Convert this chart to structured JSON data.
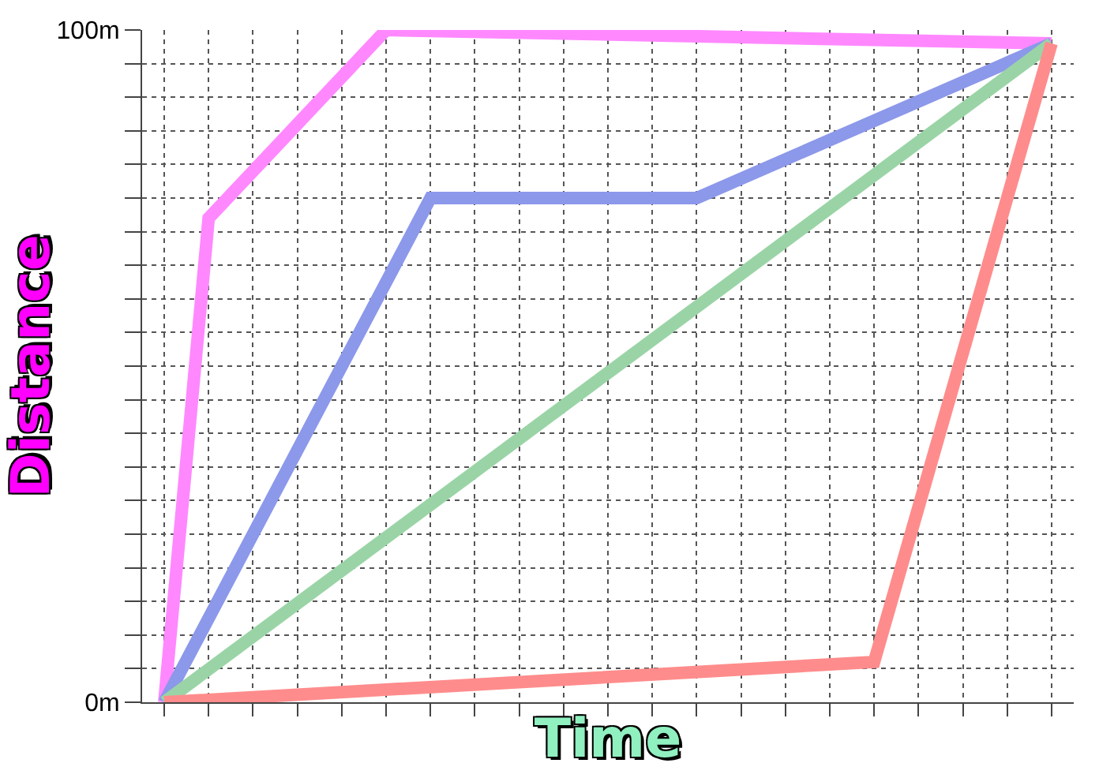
{
  "chart_data": {
    "type": "line",
    "xlabel": "Time",
    "ylabel": "Distance",
    "categories": [
      null,
      null,
      null,
      null,
      null,
      null,
      null,
      null,
      null,
      null,
      null,
      null,
      null,
      null,
      null,
      null,
      null,
      null,
      null,
      null,
      null
    ],
    "ylim": [
      0,
      100
    ],
    "yticks": [
      {
        "value": 0,
        "label": "0m"
      },
      {
        "value": 5,
        "label": null
      },
      {
        "value": 10,
        "label": null
      },
      {
        "value": 15,
        "label": null
      },
      {
        "value": 20,
        "label": null
      },
      {
        "value": 25,
        "label": null
      },
      {
        "value": 30,
        "label": null
      },
      {
        "value": 35,
        "label": null
      },
      {
        "value": 40,
        "label": null
      },
      {
        "value": 45,
        "label": null
      },
      {
        "value": 50,
        "label": null
      },
      {
        "value": 55,
        "label": null
      },
      {
        "value": 60,
        "label": null
      },
      {
        "value": 65,
        "label": null
      },
      {
        "value": 70,
        "label": null
      },
      {
        "value": 75,
        "label": null
      },
      {
        "value": 80,
        "label": null
      },
      {
        "value": 85,
        "label": null
      },
      {
        "value": 90,
        "label": null
      },
      {
        "value": 95,
        "label": null
      },
      {
        "value": 100,
        "label": "100m"
      }
    ],
    "tick_labels": "y",
    "grid": true,
    "marker": "none",
    "line_style": "solid",
    "series": [
      {
        "color": "#ff88ff",
        "values": [
          0,
          72,
          null,
          null,
          null,
          100,
          null,
          null,
          null,
          null,
          null,
          null,
          null,
          null,
          null,
          null,
          null,
          null,
          null,
          null,
          98
        ]
      },
      {
        "color": "#8c98ea",
        "values": [
          0,
          null,
          null,
          null,
          null,
          null,
          75,
          null,
          null,
          null,
          null,
          null,
          75,
          null,
          null,
          null,
          null,
          null,
          null,
          null,
          98
        ]
      },
      {
        "color": "#9ad4a6",
        "values": [
          0,
          null,
          null,
          null,
          null,
          null,
          null,
          null,
          null,
          null,
          null,
          null,
          null,
          null,
          null,
          null,
          null,
          null,
          null,
          null,
          98
        ]
      },
      {
        "color": "#ff8c8c",
        "values": [
          0,
          null,
          null,
          null,
          null,
          null,
          null,
          null,
          null,
          null,
          null,
          null,
          null,
          null,
          null,
          null,
          6,
          null,
          null,
          null,
          98
        ]
      }
    ]
  }
}
